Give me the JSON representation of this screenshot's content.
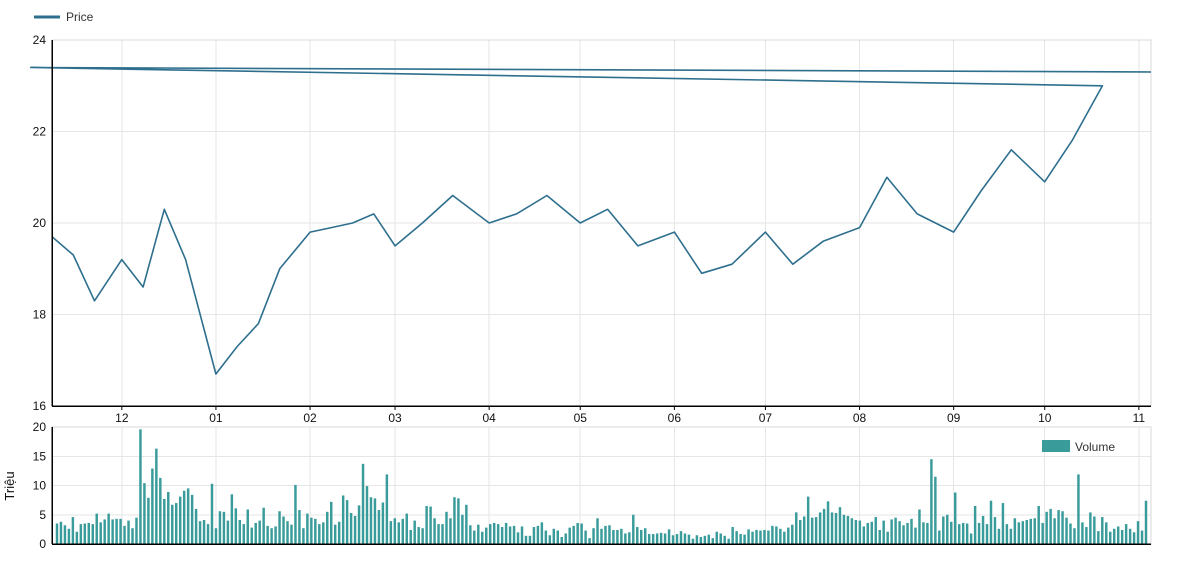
{
  "legend": {
    "price_label": "Price",
    "volume_label": "Volume"
  },
  "colors": {
    "price": "#2e6f8e",
    "volume": "#3a9b9b",
    "axis": "#000000",
    "grid": "#e6e6e6"
  },
  "chart_data": [
    {
      "type": "line",
      "title": "",
      "xlabel": "",
      "ylabel": "",
      "ylim": [
        16,
        24
      ],
      "yticks": [
        "16",
        "18",
        "20",
        "22",
        "24"
      ],
      "xticks": [
        "12",
        "01",
        "02",
        "03",
        "04",
        "05",
        "06",
        "07",
        "08",
        "09",
        "10",
        "11"
      ],
      "grid": true,
      "legend_position": "top-left",
      "series": [
        {
          "name": "Price",
          "x": [
            "11-08",
            "11-15",
            "11-22",
            "12-01",
            "12-08",
            "12-15",
            "12-22",
            "01-01",
            "01-08",
            "01-15",
            "01-22",
            "02-01",
            "02-08",
            "02-15",
            "02-22",
            "03-01",
            "03-10",
            "03-20",
            "04-01",
            "04-10",
            "04-20",
            "05-01",
            "05-10",
            "05-20",
            "06-01",
            "06-10",
            "06-20",
            "07-01",
            "07-10",
            "07-20",
            "08-01",
            "08-10",
            "08-20",
            "09-01",
            "09-10",
            "09-20",
            "10-01",
            "10-10",
            "10-20",
            "11-01",
            "11-05"
          ],
          "values": [
            19.7,
            19.3,
            18.3,
            19.2,
            18.6,
            20.3,
            19.2,
            16.7,
            17.3,
            17.8,
            19.0,
            19.8,
            19.9,
            20.0,
            20.2,
            19.5,
            20.0,
            20.6,
            20.0,
            20.2,
            20.6,
            20.0,
            20.3,
            19.5,
            19.8,
            18.9,
            19.1,
            19.8,
            19.1,
            19.6,
            19.9,
            21.0,
            20.2,
            19.8,
            20.7,
            21.6,
            20.9,
            21.8,
            23.0,
            23.4,
            23.3
          ]
        }
      ]
    },
    {
      "type": "bar",
      "title": "",
      "xlabel": "",
      "ylabel": "Triệu",
      "ylim": [
        0,
        20
      ],
      "yticks": [
        "0",
        "5",
        "10",
        "15",
        "20"
      ],
      "grid": true,
      "legend_position": "top-right",
      "series": [
        {
          "name": "Volume",
          "values": [
            3.5,
            3.8,
            3.2,
            2.6,
            4.6,
            2.1,
            3.4,
            3.5,
            3.6,
            3.4,
            5.2,
            3.7,
            4.2,
            5.2,
            4.2,
            4.3,
            4.3,
            3.1,
            4.0,
            2.7,
            4.5,
            19.6,
            10.4,
            7.9,
            12.9,
            16.3,
            11.3,
            7.7,
            8.9,
            6.7,
            7.0,
            8.1,
            9.1,
            9.5,
            8.4,
            6.0,
            3.9,
            4.1,
            3.4,
            10.3,
            2.7,
            5.6,
            5.5,
            4.0,
            8.5,
            6.1,
            4.1,
            3.4,
            5.9,
            2.8,
            3.6,
            4.0,
            6.2,
            3.1,
            2.7,
            3.0,
            5.6,
            4.7,
            3.9,
            3.3,
            10.1,
            5.8,
            2.7,
            5.2,
            4.5,
            4.3,
            3.4,
            3.7,
            5.5,
            7.2,
            3.3,
            3.8,
            8.3,
            7.5,
            5.3,
            4.8,
            6.6,
            13.7,
            9.9,
            8.0,
            7.8,
            5.8,
            7.1,
            11.9,
            3.9,
            4.4,
            3.7,
            4.3,
            5.2,
            2.4,
            4.0,
            2.9,
            2.7,
            6.5,
            6.4,
            4.4,
            3.4,
            3.4,
            5.5,
            4.4,
            8.0,
            7.8,
            5.0,
            6.7,
            3.2,
            2.3,
            3.3,
            2.1,
            2.8,
            3.4,
            3.6,
            3.4,
            2.9,
            3.6,
            3.0,
            3.1,
            2.0,
            3.0,
            1.4,
            1.4,
            2.9,
            3.1,
            3.7,
            2.3,
            1.5,
            2.6,
            2.3,
            1.2,
            1.8,
            2.8,
            3.1,
            3.6,
            3.5,
            2.3,
            1.0,
            2.7,
            4.4,
            2.6,
            3.1,
            3.2,
            2.4,
            2.4,
            2.6,
            1.8,
            2.0,
            5.0,
            2.9,
            2.4,
            2.7,
            1.7,
            1.7,
            1.8,
            1.9,
            1.8,
            2.5,
            1.5,
            1.7,
            2.2,
            1.8,
            1.6,
            0.9,
            1.5,
            1.2,
            1.4,
            1.6,
            1.0,
            2.1,
            1.8,
            1.4,
            0.9,
            2.9,
            2.2,
            1.7,
            1.6,
            2.5,
            2.1,
            2.4,
            2.3,
            2.4,
            2.3,
            3.1,
            3.0,
            2.6,
            2.1,
            2.8,
            3.3,
            5.4,
            4.1,
            4.7,
            8.1,
            4.5,
            4.6,
            5.4,
            6.0,
            7.3,
            5.4,
            5.3,
            6.3,
            5.0,
            4.8,
            4.4,
            4.1,
            4.0,
            3.0,
            3.6,
            3.8,
            4.6,
            2.4,
            4.0,
            2.1,
            4.2,
            4.5,
            3.9,
            3.2,
            3.6,
            4.3,
            2.8,
            5.9,
            3.7,
            3.6,
            14.5,
            11.5,
            2.3,
            4.7,
            5.0,
            3.8,
            8.8,
            3.4,
            3.6,
            3.5,
            1.8,
            6.5,
            3.6,
            4.8,
            3.4,
            7.4,
            4.6,
            2.6,
            7.0,
            3.4,
            2.6,
            4.4,
            3.7,
            3.9,
            4.1,
            4.3,
            4.4,
            6.5,
            3.6,
            5.5,
            6.0,
            4.4,
            5.8,
            5.6,
            4.5,
            3.5,
            2.7,
            11.9,
            3.7,
            2.9,
            5.4,
            4.7,
            2.2,
            4.6,
            3.7,
            2.1,
            2.6,
            3.0,
            2.4,
            3.4,
            2.6,
            2.0,
            3.9,
            2.3,
            7.4
          ]
        }
      ]
    }
  ]
}
